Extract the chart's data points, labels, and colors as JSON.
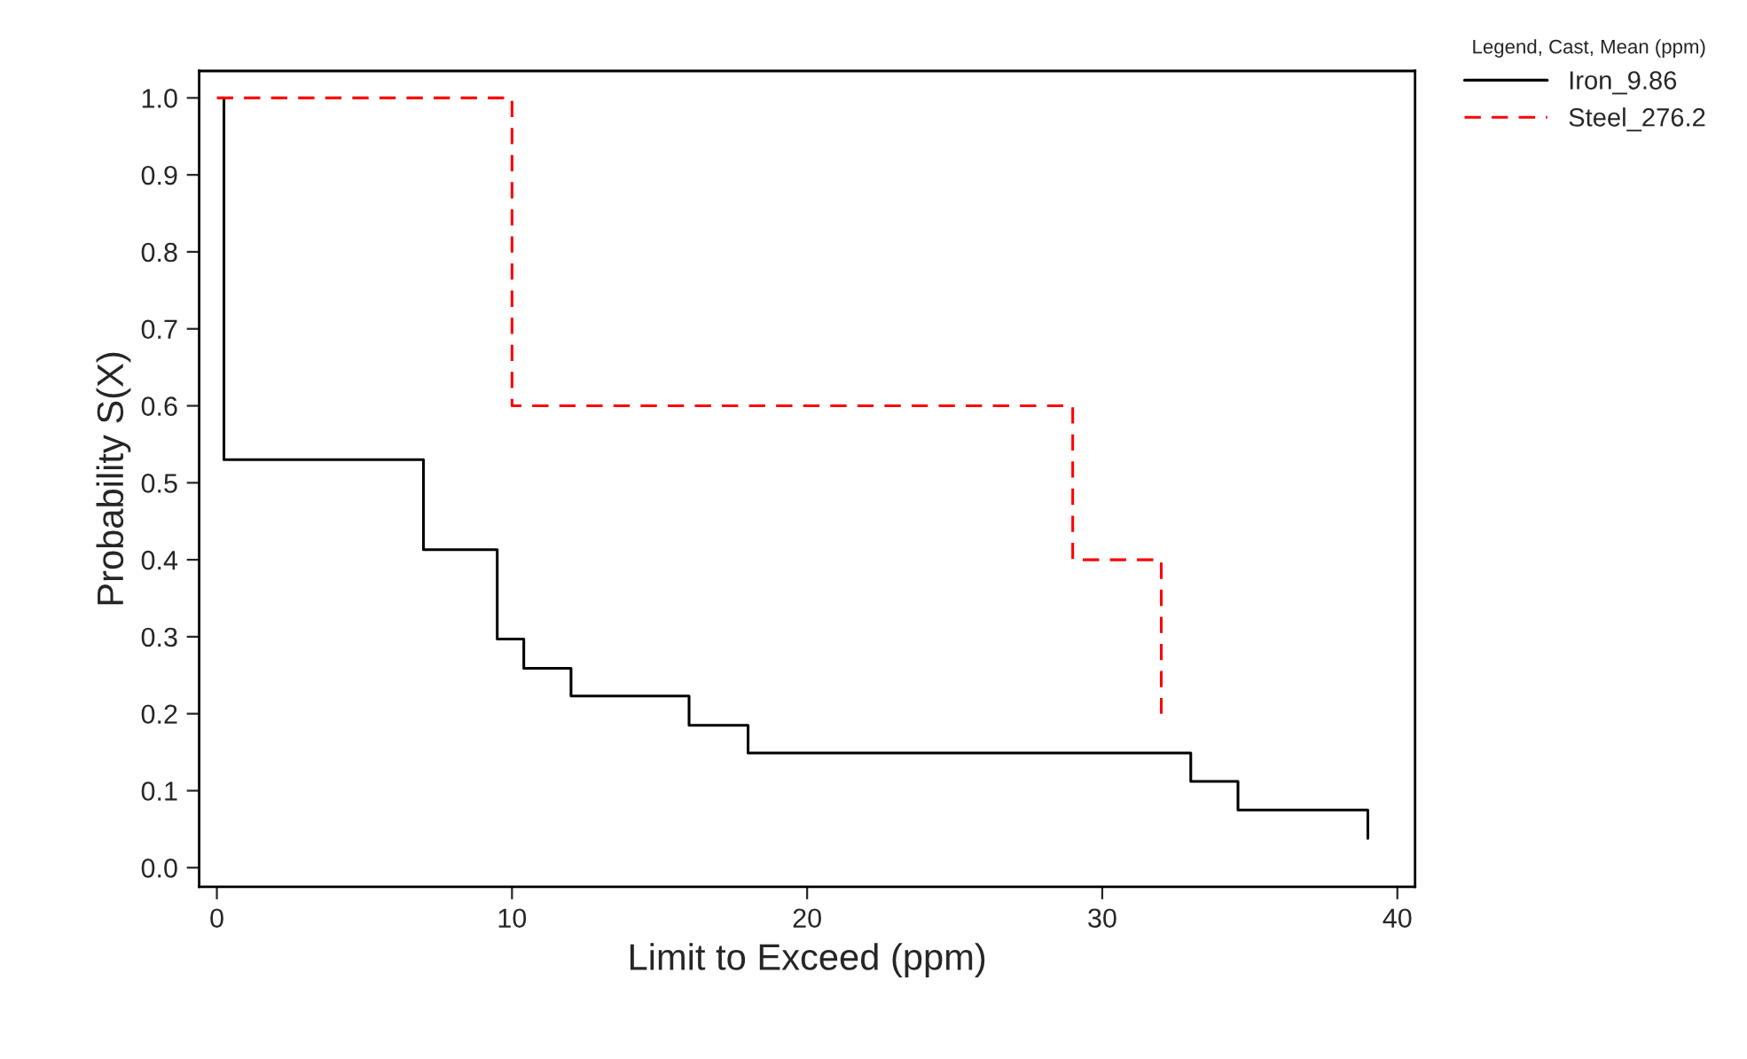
{
  "chart_data": {
    "type": "step",
    "xlabel": "Limit to Exceed (ppm)",
    "ylabel": "Probability S(X)",
    "legend_title": "Legend, Cast, Mean (ppm)",
    "series": [
      {
        "name": "Iron_9.86",
        "color": "#000000",
        "line_style": "solid",
        "x": [
          0.24,
          0.24,
          7,
          9.5,
          10.4,
          12,
          16,
          18,
          33,
          34.6,
          39,
          39
        ],
        "values": [
          1.0,
          0.53,
          0.413,
          0.297,
          0.259,
          0.223,
          0.185,
          0.149,
          0.112,
          0.075,
          0.075,
          0.038
        ]
      },
      {
        "name": "Steel_276.2",
        "color": "#ff0000",
        "line_style": "dashed",
        "x": [
          0,
          10,
          29,
          32,
          32
        ],
        "values": [
          1.0,
          0.6,
          0.4,
          0.4,
          0.2
        ]
      }
    ],
    "xlim": [
      -0.6,
      40.6
    ],
    "xticks": [
      0,
      10,
      20,
      30,
      40
    ],
    "ylim": [
      -0.025,
      1.035
    ],
    "yticks": [
      {
        "value": 0,
        "label": "0.0"
      },
      0.1,
      0.2,
      0.3,
      0.4,
      0.5,
      0.6,
      0.7,
      0.8,
      0.9,
      {
        "value": 1,
        "label": "1.0"
      }
    ],
    "grid": false,
    "legend": "top right",
    "marker": "none"
  }
}
